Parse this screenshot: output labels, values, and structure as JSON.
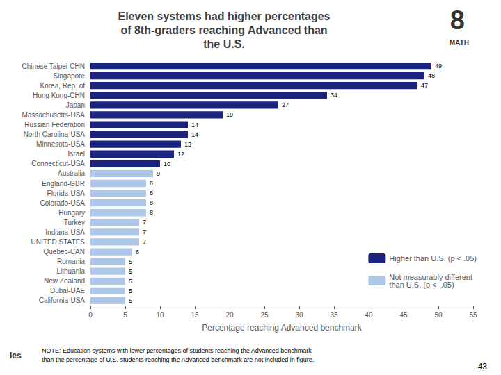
{
  "chart_data": {
    "type": "bar",
    "orientation": "horizontal",
    "title": "Eleven systems had higher percentages\nof 8th-graders reaching Advanced than\nthe U.S.",
    "xlabel": "Percentage reaching Advanced benchmark",
    "categories": [
      "Chinese Taipei-CHN",
      "Singapore",
      "Korea, Rep. of",
      "Hong Kong-CHN",
      "Japan",
      "Massachusetts-USA",
      "Russian Federation",
      "North Carolina-USA",
      "Minnesota-USA",
      "Israel",
      "Connecticut-USA",
      "Australia",
      "England-GBR",
      "Florida-USA",
      "Colorado-USA",
      "Hungary",
      "Turkey",
      "Indiana-USA",
      "UNITED STATES",
      "Quebec-CAN",
      "Romania",
      "Lithuania",
      "New Zealand",
      "Dubai-UAE",
      "California-USA"
    ],
    "series": [
      {
        "name": "Higher than U.S. (p < .05)",
        "color": "#1a237e",
        "values": [
          49,
          48,
          47,
          34,
          27,
          19,
          14,
          14,
          13,
          12,
          10,
          null,
          null,
          null,
          null,
          null,
          null,
          null,
          null,
          null,
          null,
          null,
          null,
          null,
          null
        ]
      },
      {
        "name": "Not measurably different\nthan U.S. (p <  .05)",
        "color": "#aec6e8",
        "values": [
          null,
          null,
          null,
          null,
          null,
          null,
          null,
          null,
          null,
          null,
          null,
          9,
          8,
          8,
          8,
          8,
          7,
          7,
          7,
          6,
          5,
          5,
          5,
          5,
          5
        ]
      }
    ],
    "xlim": [
      0,
      55
    ],
    "xticks": [
      0,
      5,
      10,
      15,
      20,
      25,
      30,
      35,
      40,
      45,
      50,
      55
    ],
    "data_labels": true,
    "grid": false,
    "legend": "lower right",
    "annotations": [
      "8",
      "MATH",
      "NOTE: Education systems with lower percentages of students reaching the Advanced benchmark\nthan the percentage of U.S. students reaching the Advanced benchmark are not included in figure.",
      "43",
      "ies"
    ]
  }
}
